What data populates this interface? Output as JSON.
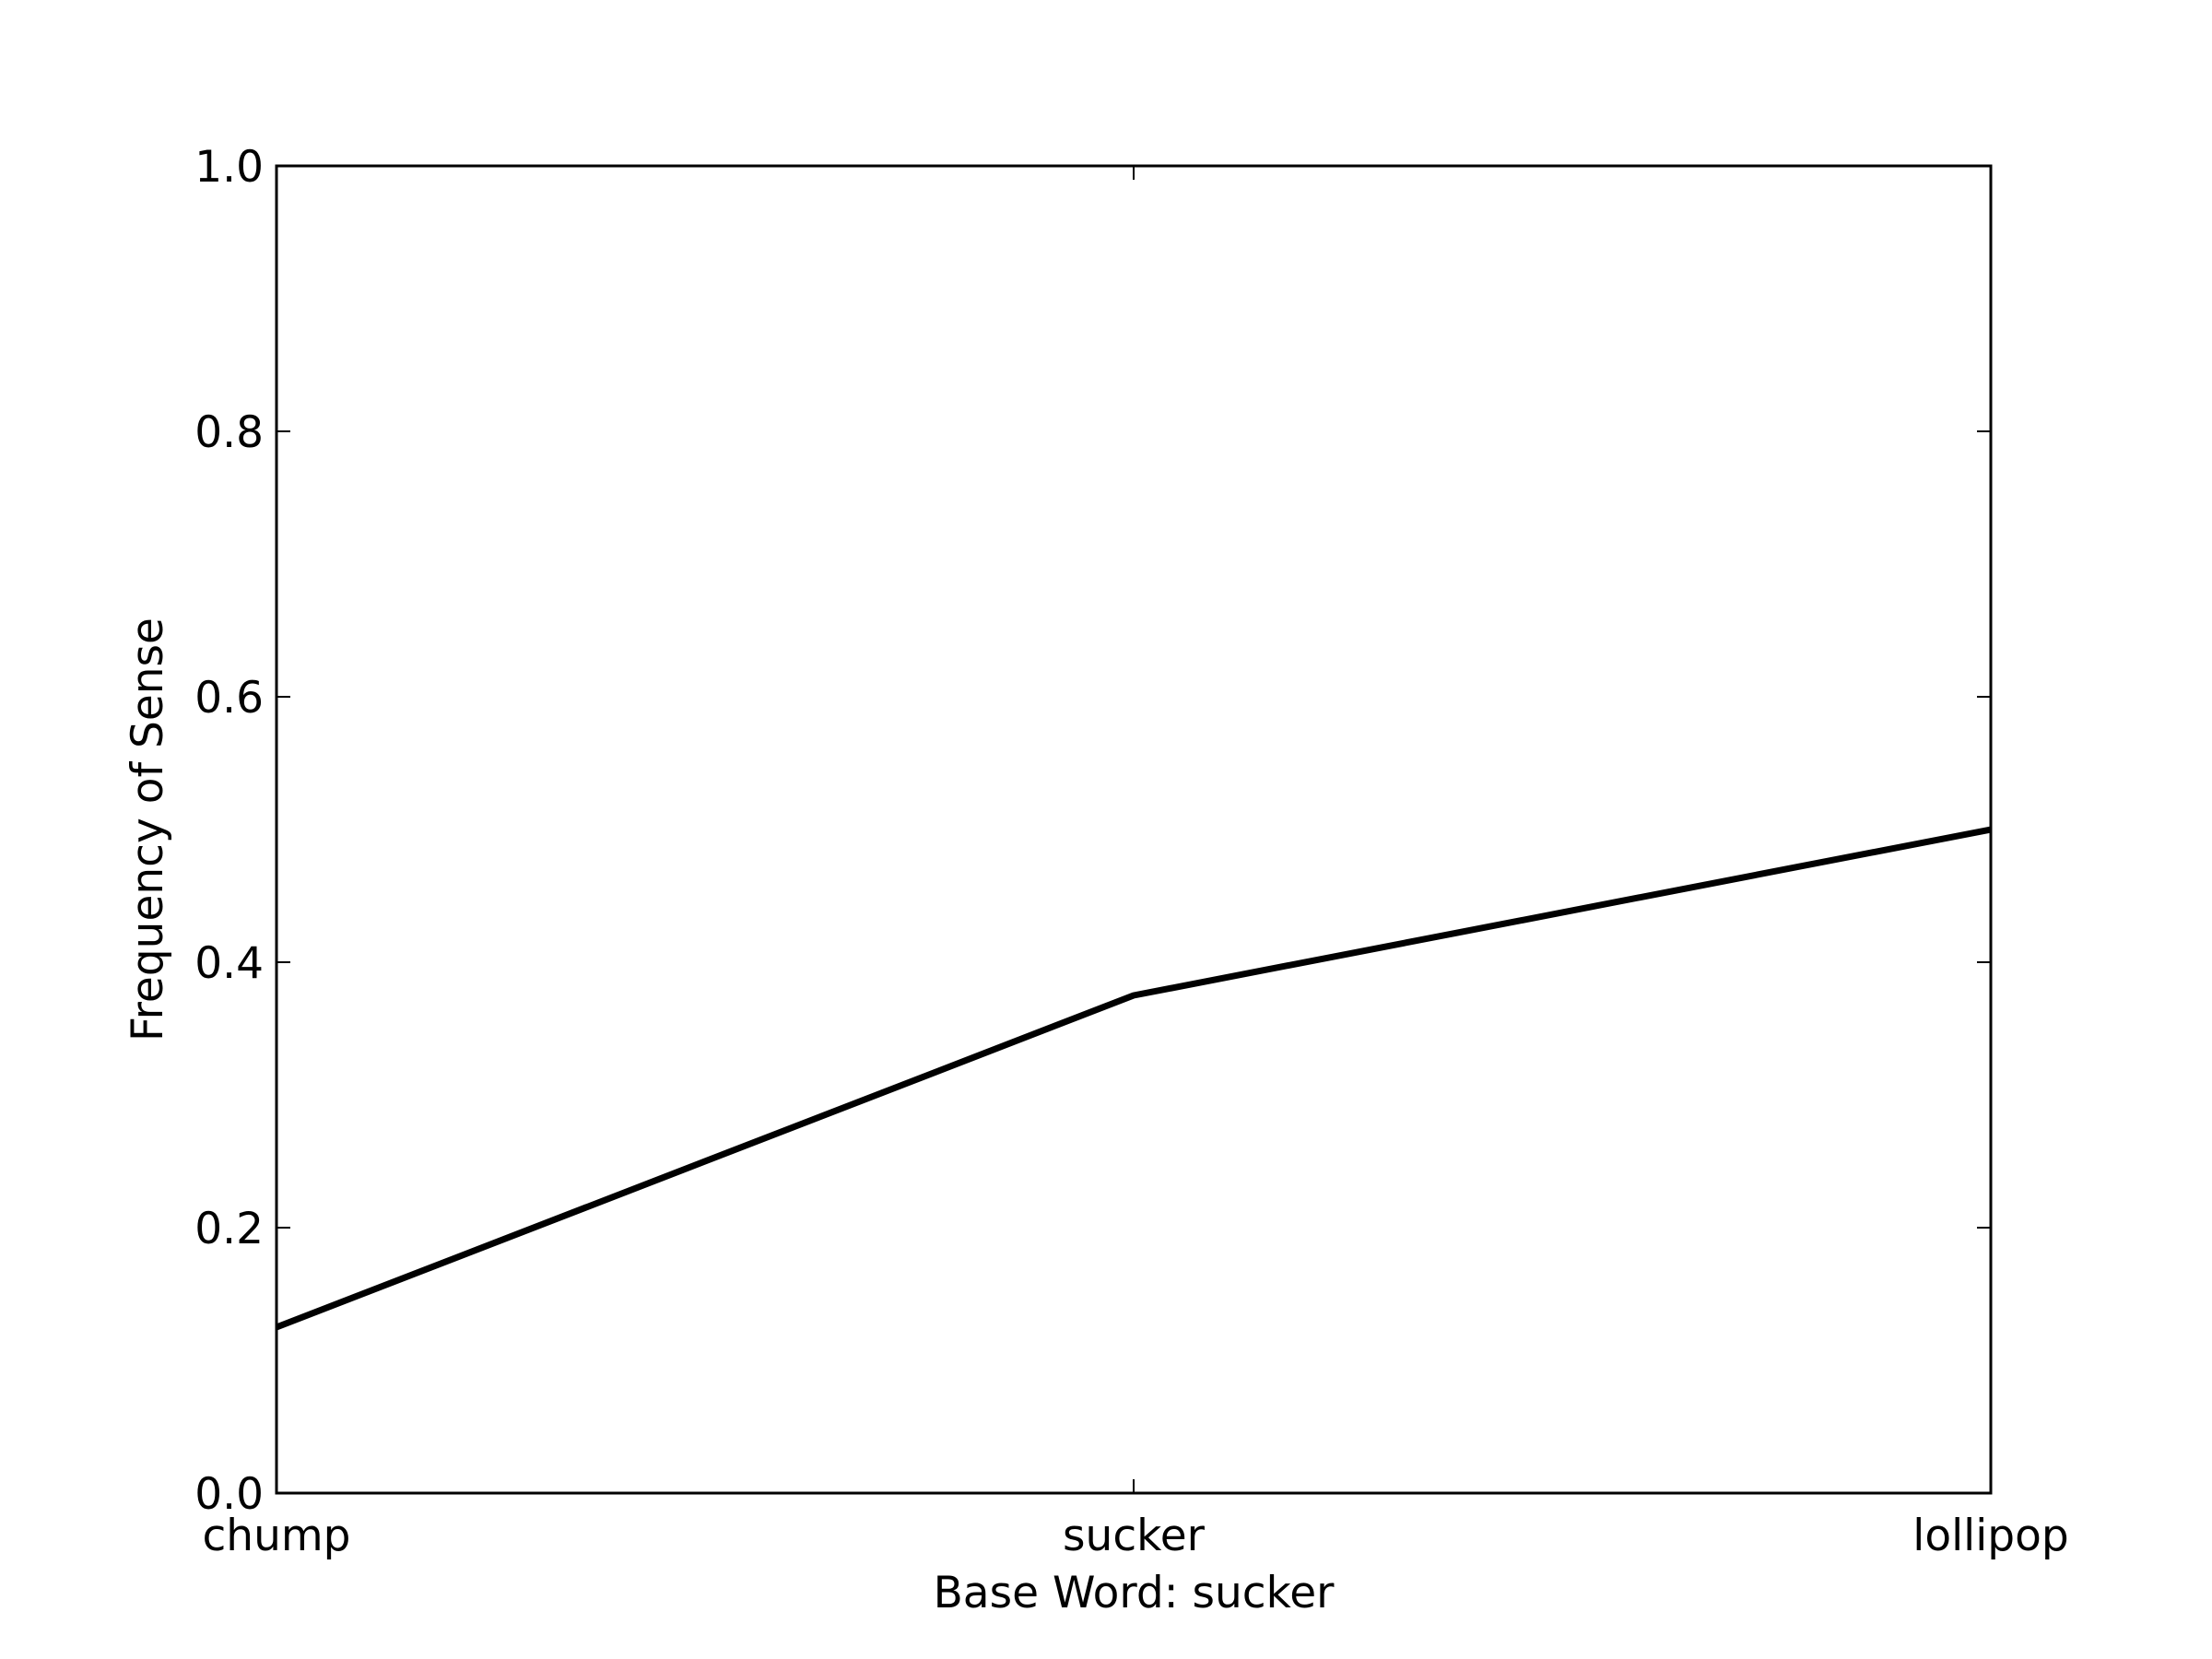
{
  "chart_data": {
    "type": "line",
    "title": "",
    "xlabel": "Base Word: sucker",
    "ylabel": "Frequency of Sense",
    "categories": [
      "chump",
      "sucker",
      "lollipop"
    ],
    "series": [
      {
        "values": [
          0.125,
          0.375,
          0.5
        ]
      }
    ],
    "ylim": [
      0,
      1
    ],
    "yticks": [
      "0.0",
      "0.2",
      "0.4",
      "0.6",
      "0.8",
      "1.0"
    ],
    "grid": false,
    "legend": "none",
    "line_color": "#000000"
  }
}
